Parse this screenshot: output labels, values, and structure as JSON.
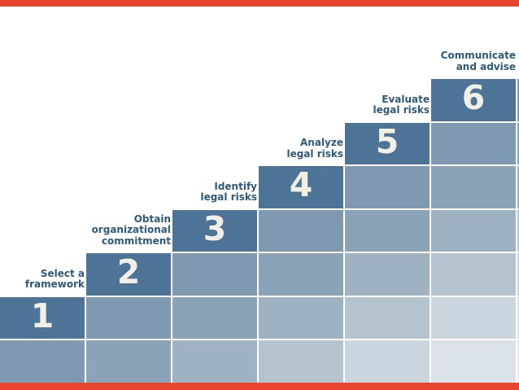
{
  "diagram": {
    "type": "staircase-process",
    "steps": [
      {
        "number": "1",
        "label_lines": [
          "Select a",
          "framework"
        ]
      },
      {
        "number": "2",
        "label_lines": [
          "Obtain",
          "organizational",
          "commitment"
        ]
      },
      {
        "number": "3",
        "label_lines": [
          "Identify",
          "legal risks"
        ]
      },
      {
        "number": "4",
        "label_lines": [
          "Analyze",
          "legal risks"
        ]
      },
      {
        "number": "5",
        "label_lines": [
          "Evaluate",
          "legal risks"
        ]
      },
      {
        "number": "6",
        "label_lines": [
          "Communicate",
          "and advise"
        ]
      }
    ],
    "colors": {
      "accent_bar": "#E8442E",
      "step_block": "#4D7396",
      "step_number_text": "#F2F0E5",
      "label_text": "#2E5977",
      "background": "#FFFFFF",
      "shade_depths": [
        "#7E99B0",
        "#8BA3B6",
        "#9FB2C2",
        "#B5C3CF",
        "#CBD5DD",
        "#DAE1E7",
        "#E6EBEF"
      ]
    }
  }
}
